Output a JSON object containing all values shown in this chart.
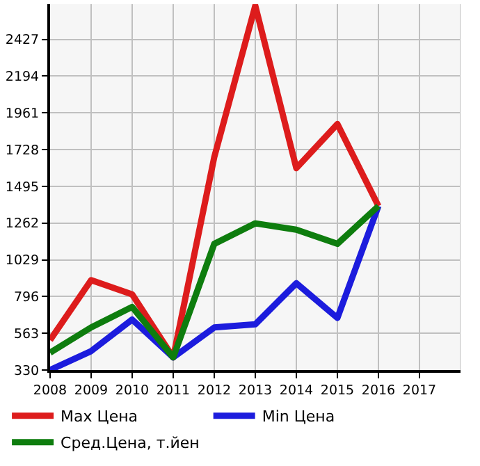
{
  "chart_data": {
    "type": "line",
    "x": [
      2008,
      2009,
      2010,
      2011,
      2012,
      2013,
      2014,
      2015,
      2016
    ],
    "series": [
      {
        "name": "Max Цена",
        "color": "#dd1c1c",
        "values": [
          520,
          900,
          810,
          410,
          1680,
          2640,
          1610,
          1890,
          1370
        ]
      },
      {
        "name": "Min Цена",
        "color": "#1c1cdd",
        "values": [
          330,
          450,
          650,
          410,
          600,
          620,
          880,
          660,
          1370
        ]
      },
      {
        "name": "Сред.Цена, т.йен",
        "color": "#0e7d0e",
        "values": [
          440,
          600,
          730,
          410,
          1130,
          1260,
          1220,
          1130,
          1370
        ]
      }
    ],
    "xlim": [
      2008,
      2018
    ],
    "xticks": [
      2008,
      2009,
      2010,
      2011,
      2012,
      2013,
      2014,
      2015,
      2016,
      2017
    ],
    "ylim": [
      330,
      2650
    ],
    "yticks": [
      330,
      563,
      796,
      1029,
      1262,
      1495,
      1728,
      1961,
      2194,
      2427
    ],
    "grid": true,
    "legend": "bottom",
    "marker": "none",
    "line_style": "solid"
  }
}
